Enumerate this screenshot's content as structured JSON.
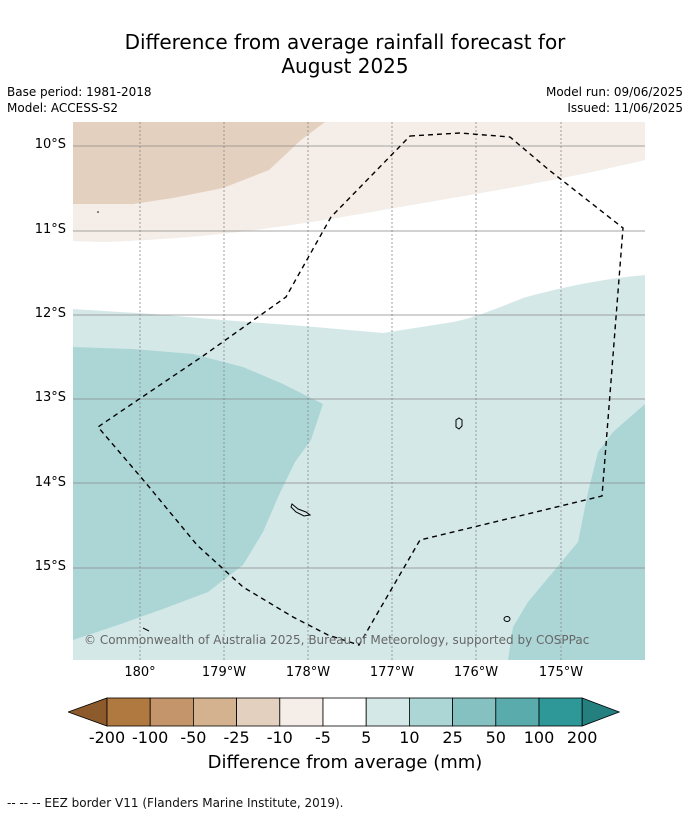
{
  "title_line1": "Difference from average rainfall forecast for",
  "title_line2": "August 2025",
  "base_period": "Base period: 1981-2018",
  "model": "Model: ACCESS-S2",
  "model_run": "Model run: 09/06/2025",
  "issued": "Issued: 11/06/2025",
  "lat_labels": [
    "10°S",
    "11°S",
    "12°S",
    "13°S",
    "14°S",
    "15°S"
  ],
  "lon_labels": [
    "180°",
    "179°W",
    "178°W",
    "177°W",
    "176°W",
    "175°W"
  ],
  "copyright": "© Commonwealth of Australia 2025, Bureau of Meteorology, supported by COSPPac",
  "colorbar": {
    "ticks": [
      "-200",
      "-100",
      "-50",
      "-25",
      "-10",
      "-5",
      "5",
      "10",
      "25",
      "50",
      "100",
      "200"
    ],
    "colors": [
      "#8c5a2b",
      "#b07940",
      "#c4956a",
      "#d5b28f",
      "#e4d0bf",
      "#f5ede8",
      "#ffffff",
      "#d5e8e8",
      "#acd6d6",
      "#86c1c1",
      "#5aacac",
      "#2e9898",
      "#24807f"
    ],
    "label": "Difference from average (mm)"
  },
  "footer": "-- -- -- EEZ border V11 (Flanders Marine Institute, 2019)."
}
